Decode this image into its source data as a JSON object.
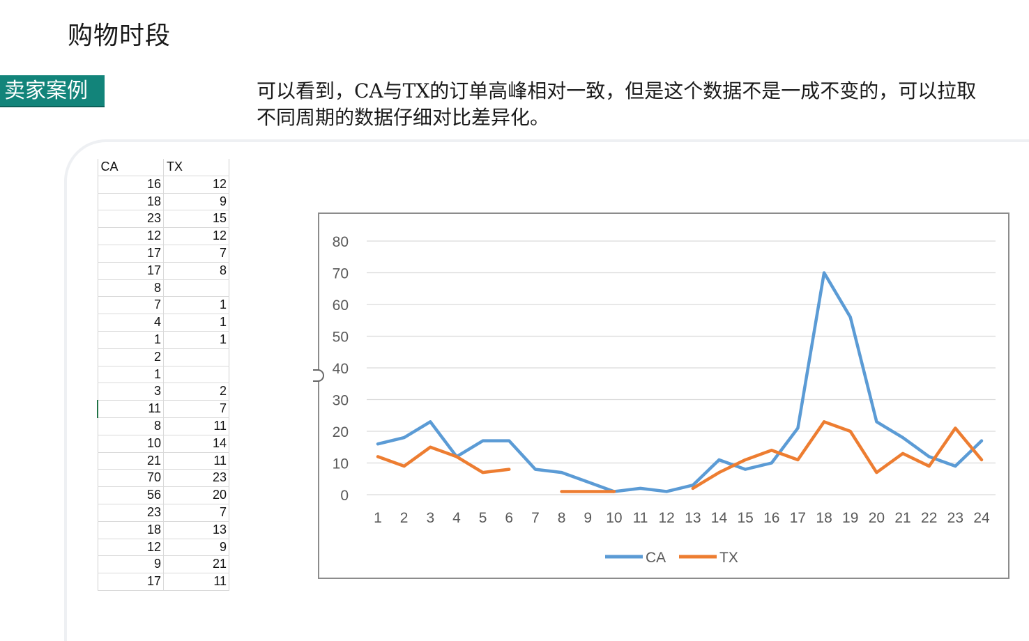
{
  "header": {
    "title": "购物时段",
    "tag": "卖家案例",
    "description": "可以看到，CA与TX的订单高峰相对一致，但是这个数据不是一成不变的，可以拉取不同周期的数据仔细对比差异化。"
  },
  "sheet": {
    "headers": [
      "CA",
      "TX"
    ],
    "rows": [
      [
        "16",
        "12"
      ],
      [
        "18",
        "9"
      ],
      [
        "23",
        "15"
      ],
      [
        "12",
        "12"
      ],
      [
        "17",
        "7"
      ],
      [
        "17",
        "8"
      ],
      [
        "8",
        ""
      ],
      [
        "7",
        "1"
      ],
      [
        "4",
        "1"
      ],
      [
        "1",
        "1"
      ],
      [
        "2",
        ""
      ],
      [
        "1",
        ""
      ],
      [
        "3",
        "2"
      ],
      [
        "11",
        "7"
      ],
      [
        "8",
        "11"
      ],
      [
        "10",
        "14"
      ],
      [
        "21",
        "11"
      ],
      [
        "70",
        "23"
      ],
      [
        "56",
        "20"
      ],
      [
        "23",
        "7"
      ],
      [
        "18",
        "13"
      ],
      [
        "12",
        "9"
      ],
      [
        "9",
        "21"
      ],
      [
        "17",
        "11"
      ]
    ]
  },
  "chart_data": {
    "type": "line",
    "categories": [
      "1",
      "2",
      "3",
      "4",
      "5",
      "6",
      "7",
      "8",
      "9",
      "10",
      "11",
      "12",
      "13",
      "14",
      "15",
      "16",
      "17",
      "18",
      "19",
      "20",
      "21",
      "22",
      "23",
      "24"
    ],
    "series": [
      {
        "name": "CA",
        "color": "#5b9bd5",
        "values": [
          16,
          18,
          23,
          12,
          17,
          17,
          8,
          7,
          4,
          1,
          2,
          1,
          3,
          11,
          8,
          10,
          21,
          70,
          56,
          23,
          18,
          12,
          9,
          17
        ]
      },
      {
        "name": "TX",
        "color": "#ed7d31",
        "values": [
          12,
          9,
          15,
          12,
          7,
          8,
          null,
          1,
          1,
          1,
          null,
          null,
          2,
          7,
          11,
          14,
          11,
          23,
          20,
          7,
          13,
          9,
          21,
          11
        ]
      }
    ],
    "ylim": [
      0,
      80
    ],
    "yticks": [
      0,
      10,
      20,
      30,
      40,
      50,
      60,
      70,
      80
    ],
    "grid": true,
    "legend": "bottom"
  }
}
